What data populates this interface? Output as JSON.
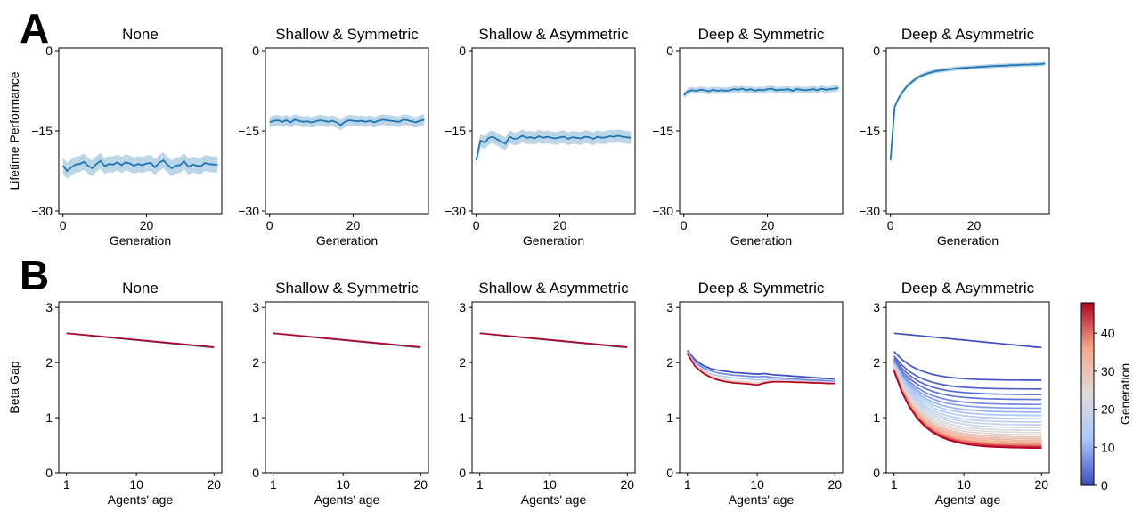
{
  "figure": {
    "panel_labels": [
      "A",
      "B"
    ],
    "colorbar": {
      "label": "Generation",
      "ticks": [
        0,
        10,
        20,
        30,
        40
      ],
      "max": 48,
      "colormap": [
        "#3b4cc0",
        "#aac7fd",
        "#dddcdc",
        "#f7a889",
        "#b40426"
      ]
    },
    "colors": {
      "line": "#1f77b4",
      "band": "#a6c8e0"
    }
  },
  "chart_data": [
    {
      "type": "line",
      "row": "A",
      "title": "None",
      "xlabel": "Generation",
      "ylabel": "Lifetime Performance",
      "xlim": [
        -1,
        38
      ],
      "ylim": [
        -30.5,
        0.5
      ],
      "xticks": [
        0,
        20
      ],
      "yticks": [
        0,
        -15,
        -30
      ],
      "band_halfwidth": 1.5,
      "series": [
        {
          "x": [
            0,
            1,
            2,
            3,
            4,
            5,
            6,
            7,
            8,
            9,
            10,
            11,
            12,
            13,
            14,
            15,
            16,
            17,
            18,
            19,
            20,
            21,
            22,
            23,
            24,
            25,
            26,
            27,
            28,
            29,
            30,
            31,
            32,
            33,
            34,
            35,
            36,
            37
          ],
          "y": [
            -21.5,
            -22.5,
            -21.8,
            -21.3,
            -21.2,
            -20.8,
            -21.5,
            -22,
            -21.2,
            -20.6,
            -21.6,
            -21.2,
            -21.3,
            -20.9,
            -21.4,
            -20.9,
            -21.1,
            -21.5,
            -21.2,
            -21.4,
            -21.1,
            -21,
            -21.8,
            -21,
            -20.5,
            -21.3,
            -22,
            -21.5,
            -21.4,
            -20.7,
            -21.7,
            -21.3,
            -21.5,
            -21.6,
            -21,
            -21.2,
            -21.3,
            -21.3
          ]
        }
      ]
    },
    {
      "type": "line",
      "row": "A",
      "title": "Shallow & Symmetric",
      "xlabel": "Generation",
      "ylabel": "",
      "xlim": [
        -1,
        38
      ],
      "ylim": [
        -30.5,
        0.5
      ],
      "xticks": [
        0,
        20
      ],
      "yticks": [
        0,
        -15,
        -30
      ],
      "band_halfwidth": 1.0,
      "series": [
        {
          "x": [
            0,
            1,
            2,
            3,
            4,
            5,
            6,
            7,
            8,
            9,
            10,
            11,
            12,
            13,
            14,
            15,
            16,
            17,
            18,
            19,
            20,
            21,
            22,
            23,
            24,
            25,
            26,
            27,
            28,
            29,
            30,
            31,
            32,
            33,
            34,
            35,
            36,
            37
          ],
          "y": [
            -13.4,
            -13.1,
            -13,
            -13.3,
            -13,
            -13.4,
            -12.9,
            -13.1,
            -13.3,
            -13.2,
            -13.4,
            -13.2,
            -13,
            -13.1,
            -13.3,
            -13.1,
            -13.4,
            -13.9,
            -13.3,
            -13,
            -13.1,
            -13.2,
            -13.1,
            -13.3,
            -13.1,
            -13.4,
            -13.1,
            -12.9,
            -13,
            -13.1,
            -13.2,
            -13.3,
            -12.9,
            -13,
            -13.2,
            -13.4,
            -13.1,
            -12.9
          ]
        }
      ]
    },
    {
      "type": "line",
      "row": "A",
      "title": "Shallow & Asymmetric",
      "xlabel": "Generation",
      "ylabel": "",
      "xlim": [
        -1,
        38
      ],
      "ylim": [
        -30.5,
        0.5
      ],
      "xticks": [
        0,
        20
      ],
      "yticks": [
        0,
        -15,
        -30
      ],
      "band_halfwidth": 1.2,
      "series": [
        {
          "x": [
            0,
            1,
            2,
            3,
            4,
            5,
            6,
            7,
            8,
            9,
            10,
            11,
            12,
            13,
            14,
            15,
            16,
            17,
            18,
            19,
            20,
            21,
            22,
            23,
            24,
            25,
            26,
            27,
            28,
            29,
            30,
            31,
            32,
            33,
            34,
            35,
            36,
            37
          ],
          "y": [
            -20.5,
            -16.8,
            -17.2,
            -16.3,
            -16.1,
            -16.6,
            -17,
            -17.4,
            -16.1,
            -16.5,
            -16.4,
            -15.9,
            -16.3,
            -16.2,
            -16.4,
            -16,
            -16.3,
            -16.1,
            -16.3,
            -16.4,
            -16.2,
            -16.1,
            -16.5,
            -16.2,
            -16.3,
            -16.4,
            -16.1,
            -16.2,
            -16.5,
            -16.1,
            -16.3,
            -16.2,
            -16,
            -16.1,
            -15.9,
            -16.1,
            -16.2,
            -16.3
          ]
        }
      ]
    },
    {
      "type": "line",
      "row": "A",
      "title": "Deep & Symmetric",
      "xlabel": "Generation",
      "ylabel": "",
      "xlim": [
        -1,
        38
      ],
      "ylim": [
        -30.5,
        0.5
      ],
      "xticks": [
        0,
        20
      ],
      "yticks": [
        0,
        -15,
        -30
      ],
      "band_halfwidth": 0.6,
      "series": [
        {
          "x": [
            0,
            1,
            2,
            3,
            4,
            5,
            6,
            7,
            8,
            9,
            10,
            11,
            12,
            13,
            14,
            15,
            16,
            17,
            18,
            19,
            20,
            21,
            22,
            23,
            24,
            25,
            26,
            27,
            28,
            29,
            30,
            31,
            32,
            33,
            34,
            35,
            36,
            37
          ],
          "y": [
            -8.3,
            -7.6,
            -7.4,
            -7.5,
            -7.3,
            -7.4,
            -7.6,
            -7.3,
            -7.5,
            -7.4,
            -7.5,
            -7.4,
            -7.2,
            -7.3,
            -7.1,
            -7.4,
            -7.2,
            -7.5,
            -7.3,
            -7.4,
            -7.2,
            -7.1,
            -7.4,
            -7.3,
            -7.3,
            -7.2,
            -7.5,
            -7.2,
            -7.3,
            -7.4,
            -7.3,
            -7.2,
            -7.4,
            -7.1,
            -7.3,
            -7.2,
            -7.1,
            -7
          ]
        }
      ]
    },
    {
      "type": "line",
      "row": "A",
      "title": "Deep & Asymmetric",
      "xlabel": "Generation",
      "ylabel": "",
      "xlim": [
        -1,
        38
      ],
      "ylim": [
        -30.5,
        0.5
      ],
      "xticks": [
        0,
        20
      ],
      "yticks": [
        0,
        -15,
        -30
      ],
      "band_halfwidth": 0.4,
      "series": [
        {
          "x": [
            0,
            1,
            2,
            3,
            4,
            5,
            6,
            7,
            8,
            9,
            10,
            11,
            12,
            13,
            14,
            15,
            16,
            17,
            18,
            19,
            20,
            21,
            22,
            23,
            24,
            25,
            26,
            27,
            28,
            29,
            30,
            31,
            32,
            33,
            34,
            35,
            36,
            37
          ],
          "y": [
            -20.5,
            -10.5,
            -8.8,
            -7.6,
            -6.6,
            -5.9,
            -5.3,
            -4.8,
            -4.5,
            -4.2,
            -4,
            -3.8,
            -3.7,
            -3.6,
            -3.5,
            -3.4,
            -3.3,
            -3.25,
            -3.2,
            -3.15,
            -3.1,
            -3.05,
            -3,
            -2.95,
            -2.9,
            -2.85,
            -2.8,
            -2.8,
            -2.75,
            -2.7,
            -2.7,
            -2.65,
            -2.6,
            -2.6,
            -2.55,
            -2.55,
            -2.5,
            -2.4
          ]
        }
      ]
    },
    {
      "type": "line",
      "row": "B",
      "title": "None",
      "xlabel": "Agents' age",
      "ylabel": "Beta Gap",
      "xlim": [
        0,
        21
      ],
      "ylim": [
        0,
        3.1
      ],
      "xticks": [
        1,
        10,
        20
      ],
      "yticks": [
        0,
        1,
        2,
        3
      ],
      "x": [
        1,
        20
      ],
      "series": [
        {
          "generation": 0,
          "values": [
            2.53,
            2.27
          ]
        },
        {
          "generation": 24,
          "values": [
            2.54,
            2.28
          ]
        },
        {
          "generation": 48,
          "values": [
            2.53,
            2.28
          ]
        }
      ]
    },
    {
      "type": "line",
      "row": "B",
      "title": "Shallow & Symmetric",
      "xlabel": "Agents' age",
      "ylabel": "",
      "xlim": [
        0,
        21
      ],
      "ylim": [
        0,
        3.1
      ],
      "xticks": [
        1,
        10,
        20
      ],
      "yticks": [
        0,
        1,
        2,
        3
      ],
      "x": [
        1,
        20
      ],
      "series": [
        {
          "generation": 0,
          "values": [
            2.53,
            2.27
          ]
        },
        {
          "generation": 24,
          "values": [
            2.54,
            2.28
          ]
        },
        {
          "generation": 48,
          "values": [
            2.53,
            2.28
          ]
        }
      ]
    },
    {
      "type": "line",
      "row": "B",
      "title": "Shallow & Asymmetric",
      "xlabel": "Agents' age",
      "ylabel": "",
      "xlim": [
        0,
        21
      ],
      "ylim": [
        0,
        3.1
      ],
      "xticks": [
        1,
        10,
        20
      ],
      "yticks": [
        0,
        1,
        2,
        3
      ],
      "x": [
        1,
        20
      ],
      "series": [
        {
          "generation": 0,
          "values": [
            2.53,
            2.27
          ]
        },
        {
          "generation": 24,
          "values": [
            2.54,
            2.28
          ]
        },
        {
          "generation": 48,
          "values": [
            2.53,
            2.28
          ]
        }
      ]
    },
    {
      "type": "line",
      "row": "B",
      "title": "Deep & Symmetric",
      "xlabel": "Agents' age",
      "ylabel": "",
      "xlim": [
        0,
        21
      ],
      "ylim": [
        0,
        3.1
      ],
      "xticks": [
        1,
        10,
        20
      ],
      "yticks": [
        0,
        1,
        2,
        3
      ],
      "x": [
        1,
        2,
        3,
        4,
        5,
        6,
        7,
        8,
        9,
        10,
        11,
        12,
        13,
        14,
        15,
        16,
        17,
        18,
        19,
        20
      ],
      "series": [
        {
          "generation": 0,
          "values": [
            2.22,
            2.05,
            1.95,
            1.89,
            1.86,
            1.84,
            1.82,
            1.81,
            1.8,
            1.79,
            1.8,
            1.78,
            1.77,
            1.76,
            1.75,
            1.74,
            1.73,
            1.72,
            1.71,
            1.7
          ]
        },
        {
          "generation": 6,
          "values": [
            2.2,
            2.01,
            1.91,
            1.85,
            1.81,
            1.79,
            1.77,
            1.76,
            1.75,
            1.74,
            1.75,
            1.73,
            1.72,
            1.71,
            1.7,
            1.69,
            1.68,
            1.68,
            1.67,
            1.66
          ]
        },
        {
          "generation": 14,
          "values": [
            2.18,
            1.98,
            1.87,
            1.8,
            1.76,
            1.74,
            1.72,
            1.71,
            1.7,
            1.68,
            1.69,
            1.7,
            1.69,
            1.68,
            1.67,
            1.66,
            1.66,
            1.65,
            1.65,
            1.64
          ]
        },
        {
          "generation": 24,
          "values": [
            2.17,
            1.96,
            1.84,
            1.77,
            1.72,
            1.69,
            1.67,
            1.66,
            1.65,
            1.63,
            1.66,
            1.67,
            1.67,
            1.66,
            1.65,
            1.65,
            1.64,
            1.64,
            1.63,
            1.63
          ]
        },
        {
          "generation": 36,
          "values": [
            2.16,
            1.94,
            1.82,
            1.74,
            1.69,
            1.66,
            1.64,
            1.63,
            1.62,
            1.6,
            1.64,
            1.66,
            1.66,
            1.65,
            1.65,
            1.64,
            1.64,
            1.63,
            1.63,
            1.62
          ]
        },
        {
          "generation": 48,
          "values": [
            2.16,
            1.93,
            1.81,
            1.73,
            1.68,
            1.65,
            1.63,
            1.62,
            1.61,
            1.59,
            1.63,
            1.65,
            1.65,
            1.65,
            1.64,
            1.64,
            1.63,
            1.63,
            1.62,
            1.62
          ]
        }
      ]
    },
    {
      "type": "line",
      "row": "B",
      "title": "Deep & Asymmetric",
      "xlabel": "Agents' age",
      "ylabel": "",
      "xlim": [
        0,
        21
      ],
      "ylim": [
        0,
        3.1
      ],
      "xticks": [
        1,
        10,
        20
      ],
      "yticks": [
        0,
        1,
        2,
        3
      ],
      "x": [
        1,
        20
      ],
      "series_rule": {
        "start": [
          2.53,
          2.17,
          2.1,
          2.0,
          1.85
        ],
        "end": [
          2.27,
          1.68,
          1.52,
          1.42,
          0.45
        ]
      },
      "series": [
        {
          "generation": 0,
          "start": 2.53,
          "end": 2.27,
          "shape": "linear"
        },
        {
          "generation": 1,
          "start": 2.2,
          "end": 1.68
        },
        {
          "generation": 2,
          "start": 2.12,
          "end": 1.52
        },
        {
          "generation": 3,
          "start": 2.08,
          "end": 1.42
        },
        {
          "generation": 4,
          "start": 2.05,
          "end": 1.33
        },
        {
          "generation": 6,
          "start": 2.03,
          "end": 1.24
        },
        {
          "generation": 8,
          "start": 2.01,
          "end": 1.17
        },
        {
          "generation": 10,
          "start": 2.0,
          "end": 1.1
        },
        {
          "generation": 12,
          "start": 1.99,
          "end": 1.04
        },
        {
          "generation": 14,
          "start": 1.98,
          "end": 0.98
        },
        {
          "generation": 16,
          "start": 1.97,
          "end": 0.92
        },
        {
          "generation": 18,
          "start": 1.96,
          "end": 0.87
        },
        {
          "generation": 20,
          "start": 1.95,
          "end": 0.82
        },
        {
          "generation": 22,
          "start": 1.94,
          "end": 0.77
        },
        {
          "generation": 24,
          "start": 1.93,
          "end": 0.73
        },
        {
          "generation": 26,
          "start": 1.92,
          "end": 0.69
        },
        {
          "generation": 28,
          "start": 1.91,
          "end": 0.65
        },
        {
          "generation": 30,
          "start": 1.9,
          "end": 0.62
        },
        {
          "generation": 32,
          "start": 1.89,
          "end": 0.59
        },
        {
          "generation": 34,
          "start": 1.88,
          "end": 0.56
        },
        {
          "generation": 36,
          "start": 1.87,
          "end": 0.53
        },
        {
          "generation": 38,
          "start": 1.87,
          "end": 0.51
        },
        {
          "generation": 40,
          "start": 1.86,
          "end": 0.49
        },
        {
          "generation": 42,
          "start": 1.86,
          "end": 0.48
        },
        {
          "generation": 44,
          "start": 1.85,
          "end": 0.47
        },
        {
          "generation": 46,
          "start": 1.85,
          "end": 0.46
        },
        {
          "generation": 48,
          "start": 1.85,
          "end": 0.45
        }
      ]
    }
  ]
}
